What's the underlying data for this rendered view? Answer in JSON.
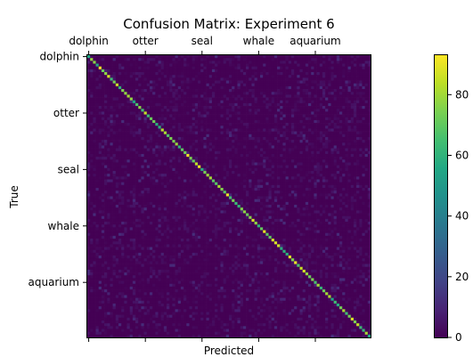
{
  "chart_data": {
    "type": "heatmap",
    "title": "Confusion Matrix: Experiment 6",
    "xlabel": "Predicted",
    "ylabel": "True",
    "n_classes": 100,
    "tick_labels": [
      "dolphin",
      "otter",
      "seal",
      "whale",
      "aquarium"
    ],
    "tick_label_indices": [
      0,
      20,
      40,
      60,
      80
    ],
    "x_tick_label_position": "top",
    "diagonal_range": [
      55,
      92
    ],
    "off_diagonal_range": [
      0,
      12
    ],
    "colormap": "viridis",
    "colorbar": {
      "range": [
        0,
        93
      ],
      "ticks": [
        0,
        20,
        40,
        60,
        80
      ],
      "tick_labels": [
        "0",
        "20",
        "40",
        "60",
        "80"
      ]
    }
  }
}
